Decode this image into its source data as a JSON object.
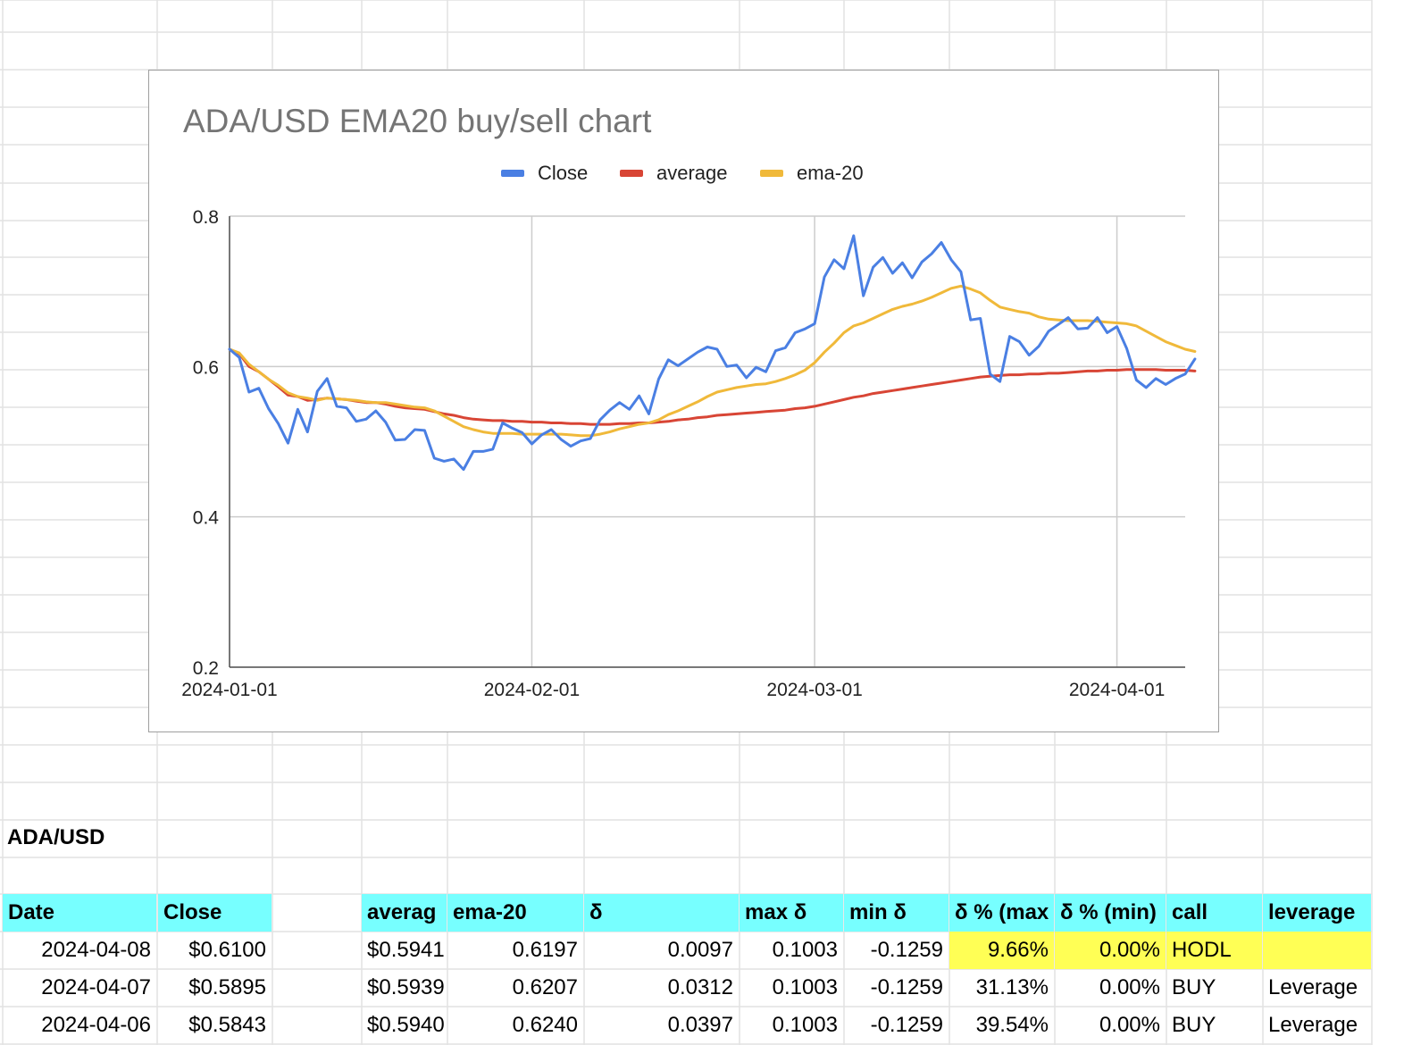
{
  "chart": {
    "title": "ADA/USD EMA20 buy/sell chart",
    "legend": [
      {
        "label": "Close",
        "color": "#4a7fe3"
      },
      {
        "label": "average",
        "color": "#d84535"
      },
      {
        "label": "ema-20",
        "color": "#f0b93a"
      }
    ]
  },
  "chart_data": {
    "type": "line",
    "title": "ADA/USD EMA20 buy/sell chart",
    "x_type": "date",
    "x_start": "2024-01-01",
    "x_end": "2024-04-08",
    "x_ticks": [
      "2024-01-01",
      "2024-02-01",
      "2024-03-01",
      "2024-04-01"
    ],
    "y_ticks": [
      "0.2",
      "0.4",
      "0.6",
      "0.8"
    ],
    "ylim": [
      0.2,
      0.8
    ],
    "grid": true,
    "legend_position": "top",
    "series": [
      {
        "name": "Close",
        "color": "#4a7fe3",
        "values": [
          0.623,
          0.612,
          0.566,
          0.571,
          0.544,
          0.524,
          0.498,
          0.543,
          0.513,
          0.567,
          0.584,
          0.547,
          0.545,
          0.527,
          0.53,
          0.541,
          0.526,
          0.502,
          0.503,
          0.516,
          0.515,
          0.478,
          0.474,
          0.477,
          0.463,
          0.487,
          0.487,
          0.49,
          0.525,
          0.518,
          0.512,
          0.497,
          0.509,
          0.516,
          0.503,
          0.494,
          0.501,
          0.504,
          0.529,
          0.542,
          0.552,
          0.543,
          0.561,
          0.537,
          0.583,
          0.609,
          0.601,
          0.61,
          0.619,
          0.626,
          0.623,
          0.6,
          0.602,
          0.585,
          0.599,
          0.593,
          0.621,
          0.625,
          0.645,
          0.65,
          0.657,
          0.719,
          0.742,
          0.73,
          0.774,
          0.694,
          0.732,
          0.745,
          0.724,
          0.738,
          0.718,
          0.739,
          0.75,
          0.765,
          0.742,
          0.726,
          0.662,
          0.664,
          0.59,
          0.58,
          0.64,
          0.633,
          0.615,
          0.627,
          0.647,
          0.656,
          0.665,
          0.65,
          0.651,
          0.665,
          0.645,
          0.653,
          0.624,
          0.582,
          0.572,
          0.584,
          0.576,
          0.584,
          0.59,
          0.61
        ]
      },
      {
        "name": "average",
        "color": "#d84535",
        "values": [
          0.623,
          0.617,
          0.6,
          0.593,
          0.583,
          0.573,
          0.562,
          0.56,
          0.555,
          0.556,
          0.558,
          0.557,
          0.556,
          0.554,
          0.552,
          0.552,
          0.55,
          0.547,
          0.545,
          0.544,
          0.543,
          0.54,
          0.537,
          0.535,
          0.532,
          0.53,
          0.529,
          0.528,
          0.528,
          0.527,
          0.527,
          0.526,
          0.526,
          0.525,
          0.525,
          0.524,
          0.524,
          0.523,
          0.523,
          0.523,
          0.524,
          0.524,
          0.525,
          0.525,
          0.526,
          0.527,
          0.529,
          0.53,
          0.532,
          0.533,
          0.535,
          0.536,
          0.537,
          0.538,
          0.539,
          0.54,
          0.541,
          0.542,
          0.544,
          0.545,
          0.547,
          0.55,
          0.553,
          0.556,
          0.559,
          0.561,
          0.564,
          0.566,
          0.568,
          0.57,
          0.572,
          0.574,
          0.576,
          0.578,
          0.58,
          0.582,
          0.584,
          0.586,
          0.587,
          0.588,
          0.589,
          0.589,
          0.59,
          0.59,
          0.591,
          0.591,
          0.592,
          0.593,
          0.594,
          0.594,
          0.595,
          0.595,
          0.596,
          0.596,
          0.596,
          0.596,
          0.595,
          0.595,
          0.595,
          0.594
        ]
      },
      {
        "name": "ema-20",
        "color": "#f0b93a",
        "values": [
          0.623,
          0.618,
          0.603,
          0.593,
          0.583,
          0.575,
          0.565,
          0.56,
          0.558,
          0.555,
          0.558,
          0.557,
          0.556,
          0.555,
          0.553,
          0.552,
          0.552,
          0.55,
          0.548,
          0.546,
          0.545,
          0.541,
          0.534,
          0.527,
          0.52,
          0.516,
          0.513,
          0.511,
          0.511,
          0.511,
          0.51,
          0.51,
          0.51,
          0.51,
          0.51,
          0.509,
          0.508,
          0.508,
          0.51,
          0.513,
          0.517,
          0.52,
          0.523,
          0.525,
          0.529,
          0.536,
          0.541,
          0.547,
          0.553,
          0.56,
          0.566,
          0.569,
          0.572,
          0.574,
          0.576,
          0.577,
          0.58,
          0.584,
          0.589,
          0.595,
          0.605,
          0.619,
          0.631,
          0.645,
          0.654,
          0.658,
          0.664,
          0.67,
          0.676,
          0.68,
          0.683,
          0.687,
          0.692,
          0.698,
          0.704,
          0.707,
          0.703,
          0.698,
          0.688,
          0.679,
          0.676,
          0.673,
          0.671,
          0.666,
          0.663,
          0.662,
          0.661,
          0.661,
          0.661,
          0.66,
          0.659,
          0.658,
          0.657,
          0.654,
          0.647,
          0.64,
          0.633,
          0.628,
          0.623,
          0.62
        ]
      }
    ]
  },
  "sheet": {
    "section_label": "ADA/USD",
    "headers": {
      "date": "Date",
      "close": "Close",
      "average": "averag",
      "ema": "ema-20",
      "delta": "δ",
      "max_delta": "max δ",
      "min_delta": "min δ",
      "pct_max": "δ % (max",
      "pct_min": "δ % (min)",
      "call": "call",
      "leverage": "leverage"
    },
    "rows": [
      {
        "date": "2024-04-08",
        "close": "$0.6100",
        "average": "$0.5941",
        "ema": "0.6197",
        "delta": "0.0097",
        "max_delta": "0.1003",
        "min_delta": "-0.1259",
        "pct_max": "9.66%",
        "pct_min": "0.00%",
        "call": "HODL",
        "leverage": ""
      },
      {
        "date": "2024-04-07",
        "close": "$0.5895",
        "average": "$0.5939",
        "ema": "0.6207",
        "delta": "0.0312",
        "max_delta": "0.1003",
        "min_delta": "-0.1259",
        "pct_max": "31.13%",
        "pct_min": "0.00%",
        "call": "BUY",
        "leverage": "Leverage"
      },
      {
        "date": "2024-04-06",
        "close": "$0.5843",
        "average": "$0.5940",
        "ema": "0.6240",
        "delta": "0.0397",
        "max_delta": "0.1003",
        "min_delta": "-0.1259",
        "pct_max": "39.54%",
        "pct_min": "0.00%",
        "call": "BUY",
        "leverage": "Leverage"
      }
    ]
  }
}
